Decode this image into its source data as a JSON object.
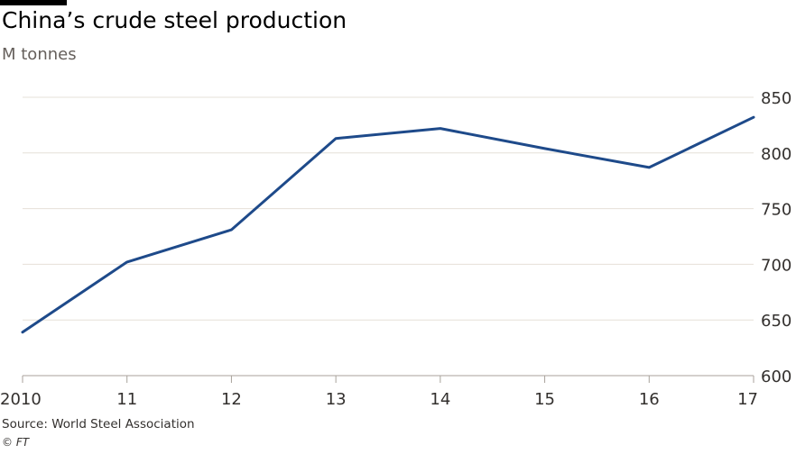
{
  "title": "China’s crude steel production",
  "subtitle": "M tonnes",
  "source": "Source: World Steel Association",
  "credit": "© FT",
  "colors": {
    "line": "#1e4a8a",
    "grid": "#e6e0d8",
    "axis": "#a8a29b",
    "tick_text": "#33302e"
  },
  "chart_data": {
    "type": "line",
    "title": "China’s crude steel production",
    "subtitle": "M tonnes",
    "xlabel": "",
    "ylabel": "",
    "x": [
      2010,
      2011,
      2012,
      2013,
      2014,
      2015,
      2016,
      2017
    ],
    "x_tick_labels": [
      "2010",
      "11",
      "12",
      "13",
      "14",
      "15",
      "16",
      "17"
    ],
    "y_ticks": [
      600,
      650,
      700,
      750,
      800,
      850
    ],
    "y_tick_labels": [
      "600",
      "650",
      "700",
      "750",
      "800",
      "850"
    ],
    "ylim": [
      600,
      850
    ],
    "grid": true,
    "y_axis_position": "right",
    "series": [
      {
        "values": [
          639,
          702,
          731,
          813,
          822,
          804,
          787,
          832
        ]
      }
    ]
  }
}
